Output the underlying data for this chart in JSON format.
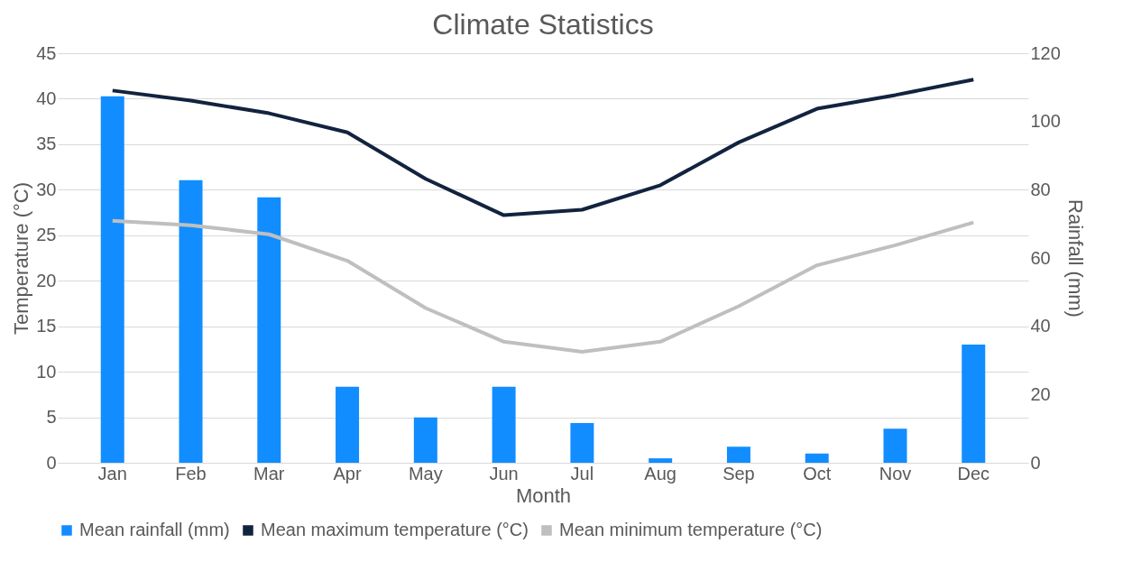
{
  "chart_data": {
    "type": "bar",
    "title": "Climate Statistics",
    "xlabel": "Month",
    "ylabel": "Temperature (°C)",
    "y2label": "Rainfall (mm)",
    "categories": [
      "Jan",
      "Feb",
      "Mar",
      "Apr",
      "May",
      "Jun",
      "Jul",
      "Aug",
      "Sep",
      "Oct",
      "Nov",
      "Dec"
    ],
    "series": [
      {
        "name": "Mean rainfall (mm)",
        "axis": "y2",
        "color": "#118dff",
        "values": [
          107.4,
          82.8,
          77.8,
          22.3,
          13.3,
          22.3,
          11.6,
          1.3,
          4.7,
          2.7,
          10.0,
          34.6
        ]
      },
      {
        "name": "Mean maximum temperature (°C)",
        "type": "line",
        "color": "#12233f",
        "values": [
          40.9,
          39.8,
          38.4,
          36.3,
          31.2,
          27.2,
          27.8,
          30.5,
          35.2,
          38.9,
          40.4,
          42.1
        ]
      },
      {
        "name": "Mean minimum temperature (°C)",
        "type": "line",
        "color": "#bfbfbf",
        "values": [
          26.6,
          26.1,
          25.1,
          22.2,
          17.0,
          13.3,
          12.2,
          13.3,
          17.2,
          21.7,
          23.9,
          26.4
        ]
      }
    ],
    "ylim": [
      0,
      45
    ],
    "yticks": [
      0,
      5,
      10,
      15,
      20,
      25,
      30,
      35,
      40,
      45
    ],
    "y2lim": [
      0,
      120
    ],
    "y2ticks": [
      0,
      20,
      40,
      60,
      80,
      100,
      120
    ],
    "grid": "y",
    "legend": "bottom",
    "marker": "none",
    "line_style": "solid"
  }
}
